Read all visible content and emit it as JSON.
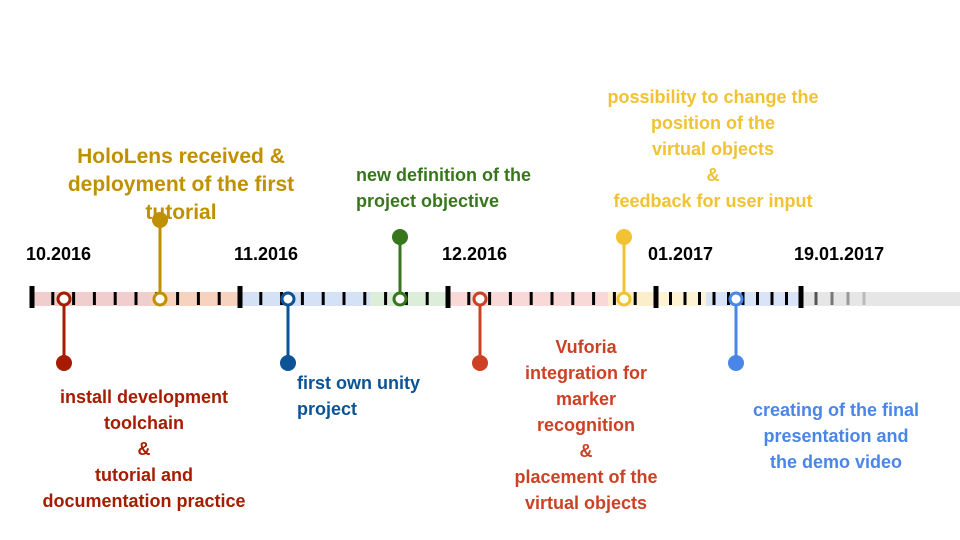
{
  "dates": [
    "10.2016",
    "11.2016",
    "12.2016",
    "01.2017",
    "19.01.2017"
  ],
  "milestones": [
    {
      "id": "toolchain",
      "color": "#a61c00",
      "lines": [
        "install development",
        "toolchain",
        "&",
        "tutorial and",
        "documentation practice"
      ]
    },
    {
      "id": "hololens",
      "color": "#bf9000",
      "lines": [
        "HoloLens received &",
        "deployment of the first",
        "tutorial"
      ]
    },
    {
      "id": "unity",
      "color": "#0b5394",
      "lines": [
        "first own unity",
        "project"
      ]
    },
    {
      "id": "objective",
      "color": "#38761d",
      "lines": [
        "new definition of the",
        "project objective"
      ]
    },
    {
      "id": "vuforia",
      "color": "#cc4125",
      "lines": [
        "Vuforia",
        "integration for",
        "marker",
        "recognition",
        "&",
        "placement of the",
        "virtual objects"
      ]
    },
    {
      "id": "position",
      "color": "#f1c232",
      "lines": [
        "possibility to change the",
        "position of the",
        "virtual objects",
        "&",
        "feedback for user input"
      ]
    },
    {
      "id": "final",
      "color": "#4a86e8",
      "lines": [
        "creating of the final",
        "presentation and",
        "the demo video"
      ]
    }
  ]
}
